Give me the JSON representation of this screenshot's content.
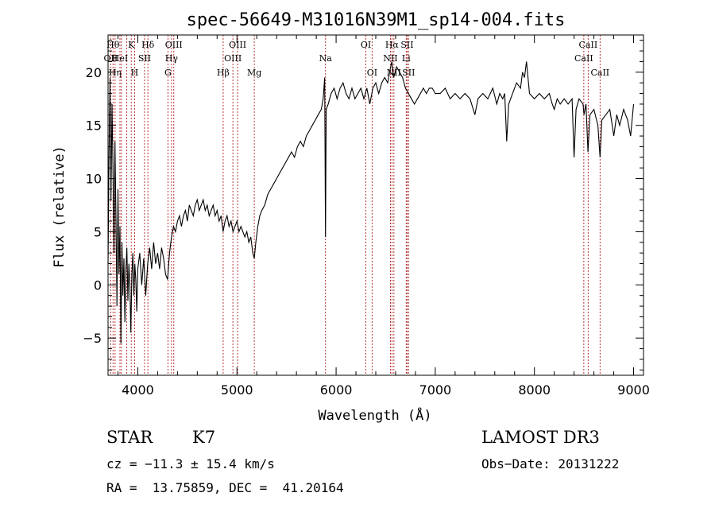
{
  "chart_data": {
    "type": "line",
    "title": "spec-56649-M31016N39M1_sp14-004.fits",
    "xlabel": "Wavelength (Å)",
    "ylabel": "Flux (relative)",
    "xlim": [
      3700,
      9100
    ],
    "ylim": [
      -8.5,
      23.5
    ],
    "x_ticks": [
      4000,
      5000,
      6000,
      7000,
      8000,
      9000
    ],
    "y_ticks": [
      -5,
      0,
      5,
      10,
      15,
      20
    ],
    "grid": false,
    "series": [
      {
        "points": [
          [
            3700,
            2.0
          ],
          [
            3710,
            12.0
          ],
          [
            3720,
            19.5
          ],
          [
            3730,
            8.0
          ],
          [
            3740,
            17.0
          ],
          [
            3750,
            11.0
          ],
          [
            3760,
            3.0
          ],
          [
            3770,
            13.5
          ],
          [
            3780,
            6.0
          ],
          [
            3790,
            -2.0
          ],
          [
            3800,
            9.0
          ],
          [
            3810,
            1.0
          ],
          [
            3820,
            5.5
          ],
          [
            3830,
            -5.5
          ],
          [
            3840,
            4.0
          ],
          [
            3850,
            -1.0
          ],
          [
            3860,
            2.5
          ],
          [
            3870,
            -3.5
          ],
          [
            3880,
            1.5
          ],
          [
            3890,
            3.5
          ],
          [
            3900,
            -1.5
          ],
          [
            3910,
            2.0
          ],
          [
            3920,
            0.0
          ],
          [
            3930,
            -4.5
          ],
          [
            3940,
            1.0
          ],
          [
            3950,
            3.0
          ],
          [
            3960,
            -1.0
          ],
          [
            3970,
            2.0
          ],
          [
            3980,
            0.5
          ],
          [
            3990,
            -2.5
          ],
          [
            4000,
            1.5
          ],
          [
            4020,
            3.0
          ],
          [
            4040,
            0.0
          ],
          [
            4060,
            2.5
          ],
          [
            4080,
            -1.0
          ],
          [
            4100,
            2.0
          ],
          [
            4120,
            3.5
          ],
          [
            4140,
            1.5
          ],
          [
            4160,
            4.0
          ],
          [
            4180,
            2.0
          ],
          [
            4200,
            3.0
          ],
          [
            4220,
            1.5
          ],
          [
            4240,
            3.5
          ],
          [
            4260,
            2.5
          ],
          [
            4280,
            1.0
          ],
          [
            4300,
            0.5
          ],
          [
            4320,
            3.0
          ],
          [
            4340,
            4.5
          ],
          [
            4360,
            5.5
          ],
          [
            4380,
            5.0
          ],
          [
            4400,
            6.0
          ],
          [
            4420,
            6.5
          ],
          [
            4440,
            5.5
          ],
          [
            4460,
            6.5
          ],
          [
            4480,
            7.0
          ],
          [
            4500,
            6.0
          ],
          [
            4520,
            7.5
          ],
          [
            4540,
            7.0
          ],
          [
            4560,
            6.5
          ],
          [
            4580,
            7.5
          ],
          [
            4600,
            8.0
          ],
          [
            4620,
            7.0
          ],
          [
            4640,
            7.5
          ],
          [
            4660,
            8.0
          ],
          [
            4680,
            7.0
          ],
          [
            4700,
            7.5
          ],
          [
            4720,
            6.5
          ],
          [
            4740,
            7.0
          ],
          [
            4760,
            7.5
          ],
          [
            4780,
            6.5
          ],
          [
            4800,
            7.0
          ],
          [
            4820,
            6.0
          ],
          [
            4840,
            6.5
          ],
          [
            4860,
            5.0
          ],
          [
            4880,
            6.0
          ],
          [
            4900,
            6.5
          ],
          [
            4920,
            5.5
          ],
          [
            4940,
            6.0
          ],
          [
            4960,
            5.0
          ],
          [
            4980,
            5.5
          ],
          [
            5000,
            6.0
          ],
          [
            5020,
            5.0
          ],
          [
            5040,
            5.5
          ],
          [
            5060,
            5.0
          ],
          [
            5080,
            4.5
          ],
          [
            5100,
            5.0
          ],
          [
            5120,
            4.0
          ],
          [
            5140,
            4.5
          ],
          [
            5160,
            3.0
          ],
          [
            5175,
            2.5
          ],
          [
            5190,
            4.0
          ],
          [
            5210,
            5.5
          ],
          [
            5230,
            6.5
          ],
          [
            5250,
            7.0
          ],
          [
            5280,
            7.5
          ],
          [
            5310,
            8.5
          ],
          [
            5340,
            9.0
          ],
          [
            5370,
            9.5
          ],
          [
            5400,
            10.0
          ],
          [
            5430,
            10.5
          ],
          [
            5460,
            11.0
          ],
          [
            5490,
            11.5
          ],
          [
            5520,
            12.0
          ],
          [
            5550,
            12.5
          ],
          [
            5580,
            12.0
          ],
          [
            5610,
            13.0
          ],
          [
            5640,
            13.5
          ],
          [
            5670,
            13.0
          ],
          [
            5700,
            14.0
          ],
          [
            5730,
            14.5
          ],
          [
            5760,
            15.0
          ],
          [
            5790,
            15.5
          ],
          [
            5820,
            16.0
          ],
          [
            5850,
            16.5
          ],
          [
            5870,
            17.5
          ],
          [
            5885,
            19.5
          ],
          [
            5893,
            4.5
          ],
          [
            5900,
            16.5
          ],
          [
            5920,
            17.0
          ],
          [
            5950,
            18.0
          ],
          [
            5980,
            18.5
          ],
          [
            6010,
            17.5
          ],
          [
            6040,
            18.5
          ],
          [
            6070,
            19.0
          ],
          [
            6100,
            18.0
          ],
          [
            6130,
            17.5
          ],
          [
            6160,
            18.5
          ],
          [
            6190,
            17.5
          ],
          [
            6220,
            18.0
          ],
          [
            6250,
            18.5
          ],
          [
            6280,
            17.5
          ],
          [
            6310,
            18.5
          ],
          [
            6340,
            17.0
          ],
          [
            6370,
            18.5
          ],
          [
            6400,
            19.0
          ],
          [
            6430,
            18.0
          ],
          [
            6460,
            19.0
          ],
          [
            6490,
            19.5
          ],
          [
            6520,
            19.0
          ],
          [
            6550,
            20.5
          ],
          [
            6563,
            21.0
          ],
          [
            6580,
            19.5
          ],
          [
            6610,
            20.5
          ],
          [
            6640,
            20.0
          ],
          [
            6670,
            19.5
          ],
          [
            6700,
            18.5
          ],
          [
            6730,
            18.0
          ],
          [
            6760,
            17.5
          ],
          [
            6790,
            17.0
          ],
          [
            6820,
            17.5
          ],
          [
            6850,
            18.0
          ],
          [
            6880,
            18.5
          ],
          [
            6910,
            18.0
          ],
          [
            6940,
            18.5
          ],
          [
            6970,
            18.5
          ],
          [
            7000,
            18.0
          ],
          [
            7050,
            18.0
          ],
          [
            7100,
            18.5
          ],
          [
            7150,
            17.5
          ],
          [
            7200,
            18.0
          ],
          [
            7250,
            17.5
          ],
          [
            7300,
            18.0
          ],
          [
            7350,
            17.5
          ],
          [
            7400,
            16.0
          ],
          [
            7430,
            17.5
          ],
          [
            7480,
            18.0
          ],
          [
            7530,
            17.5
          ],
          [
            7580,
            18.5
          ],
          [
            7620,
            17.0
          ],
          [
            7650,
            18.0
          ],
          [
            7680,
            17.5
          ],
          [
            7700,
            18.0
          ],
          [
            7720,
            13.5
          ],
          [
            7740,
            17.0
          ],
          [
            7780,
            18.0
          ],
          [
            7820,
            19.0
          ],
          [
            7860,
            18.5
          ],
          [
            7880,
            20.0
          ],
          [
            7900,
            19.5
          ],
          [
            7920,
            21.0
          ],
          [
            7950,
            18.0
          ],
          [
            8000,
            17.5
          ],
          [
            8050,
            18.0
          ],
          [
            8100,
            17.5
          ],
          [
            8150,
            18.0
          ],
          [
            8180,
            17.0
          ],
          [
            8200,
            16.5
          ],
          [
            8230,
            17.5
          ],
          [
            8260,
            17.0
          ],
          [
            8300,
            17.5
          ],
          [
            8340,
            17.0
          ],
          [
            8380,
            17.5
          ],
          [
            8400,
            12.0
          ],
          [
            8420,
            16.5
          ],
          [
            8450,
            17.5
          ],
          [
            8490,
            17.0
          ],
          [
            8500,
            16.0
          ],
          [
            8520,
            17.0
          ],
          [
            8540,
            12.5
          ],
          [
            8560,
            16.0
          ],
          [
            8600,
            16.5
          ],
          [
            8640,
            15.0
          ],
          [
            8662,
            12.0
          ],
          [
            8680,
            15.5
          ],
          [
            8720,
            16.0
          ],
          [
            8760,
            16.5
          ],
          [
            8800,
            14.0
          ],
          [
            8830,
            16.0
          ],
          [
            8860,
            15.0
          ],
          [
            8900,
            16.5
          ],
          [
            8940,
            15.5
          ],
          [
            8970,
            14.0
          ],
          [
            9000,
            17.0
          ]
        ]
      }
    ],
    "reference_lines": [
      {
        "x": 3727,
        "label": "OII",
        "row": 1
      },
      {
        "x": 3750,
        "label": "Hθ",
        "row": 0
      },
      {
        "x": 3771,
        "label": "Hη",
        "row": 2
      },
      {
        "x": 3820,
        "label": "HeI",
        "row": 1
      },
      {
        "x": 3835,
        "label": "",
        "row": 2
      },
      {
        "x": 3889,
        "label": "",
        "row": 2
      },
      {
        "x": 3934,
        "label": "K",
        "row": 0
      },
      {
        "x": 3968,
        "label": "H",
        "row": 2
      },
      {
        "x": 4068,
        "label": "SII",
        "row": 1
      },
      {
        "x": 4102,
        "label": "Hδ",
        "row": 0
      },
      {
        "x": 4304,
        "label": "G",
        "row": 2
      },
      {
        "x": 4340,
        "label": "Hγ",
        "row": 1
      },
      {
        "x": 4363,
        "label": "OIII",
        "row": 0
      },
      {
        "x": 4861,
        "label": "Hβ",
        "row": 2
      },
      {
        "x": 4959,
        "label": "OIII",
        "row": 1
      },
      {
        "x": 5007,
        "label": "OIII",
        "row": 0
      },
      {
        "x": 5175,
        "label": "Mg",
        "row": 2
      },
      {
        "x": 5893,
        "label": "Na",
        "row": 1
      },
      {
        "x": 6300,
        "label": "OI",
        "row": 0
      },
      {
        "x": 6363,
        "label": "OI",
        "row": 2
      },
      {
        "x": 6548,
        "label": "NII",
        "row": 1
      },
      {
        "x": 6563,
        "label": "Hα",
        "row": 0
      },
      {
        "x": 6583,
        "label": "NII",
        "row": 2
      },
      {
        "x": 6707,
        "label": "Li",
        "row": 1
      },
      {
        "x": 6716,
        "label": "SII",
        "row": 0
      },
      {
        "x": 6731,
        "label": "SII",
        "row": 2
      },
      {
        "x": 8498,
        "label": "CaII",
        "row": 1
      },
      {
        "x": 8542,
        "label": "CaII",
        "row": 0
      },
      {
        "x": 8662,
        "label": "CaII",
        "row": 2
      }
    ]
  },
  "info": {
    "class": "STAR",
    "subclass": "K7",
    "survey": "LAMOST DR3",
    "cz": "cz = −11.3 ± 15.4 km/s",
    "obs_date": "Obs−Date: 20131222",
    "coords": "RA =  13.75859, DEC =  41.20164"
  }
}
